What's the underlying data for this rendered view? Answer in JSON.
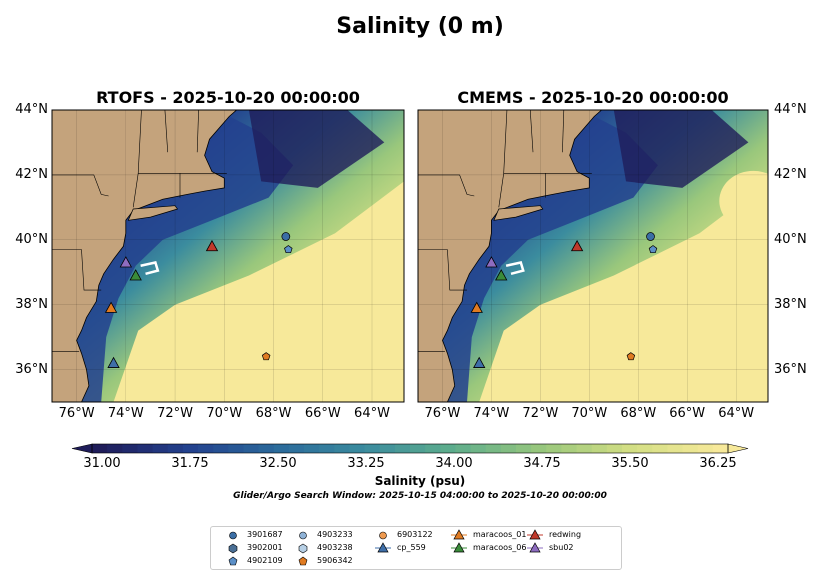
{
  "suptitle": "Salinity (0 m)",
  "panels": [
    {
      "title": "RTOFS - 2025-10-20 00:00:00"
    },
    {
      "title": "CMEMS - 2025-10-20 00:00:00"
    }
  ],
  "axes": {
    "lat_labels": [
      "44°N",
      "42°N",
      "40°N",
      "38°N",
      "36°N"
    ],
    "lon_labels": [
      "76°W",
      "74°W",
      "72°W",
      "70°W",
      "68°W",
      "66°W",
      "64°W"
    ]
  },
  "colorbar": {
    "label": "Salinity (psu)",
    "ticks": [
      "31.00",
      "31.75",
      "32.50",
      "33.25",
      "34.00",
      "34.75",
      "35.50",
      "36.25"
    ],
    "colors": [
      "#1f1d5a",
      "#23418e",
      "#2b6a9b",
      "#3b8c9e",
      "#5fae8c",
      "#99c77c",
      "#d3df84",
      "#f7e99a"
    ]
  },
  "search_window": "Glider/Argo Search Window: 2025-10-15 04:00:00 to 2025-10-20 00:00:00",
  "colors": {
    "land": "#c4a37c",
    "ocean_fresh": "#1f2a6e",
    "ocean_salty": "#f7e99a"
  },
  "chart_data": {
    "type": "heatmap",
    "variable": "Salinity",
    "units": "psu",
    "depth_m": 0,
    "time": "2025-10-20 00:00:00",
    "lat_range": [
      35,
      44
    ],
    "lon_range": [
      -77,
      -62.7
    ],
    "value_range": [
      31.0,
      36.25
    ],
    "models": [
      "RTOFS",
      "CMEMS"
    ],
    "platforms": [
      {
        "id": "3901687",
        "marker": "circle",
        "color": "#3b6ea5",
        "lon": -67.5,
        "lat": 40.1
      },
      {
        "id": "3902001",
        "marker": "hexagon",
        "color": "#4a6f95",
        "lon": null,
        "lat": null
      },
      {
        "id": "4902109",
        "marker": "pentagon",
        "color": "#5b8fc7",
        "lon": -67.4,
        "lat": 39.7
      },
      {
        "id": "4903233",
        "marker": "circle",
        "color": "#8fb2d6",
        "lon": null,
        "lat": null
      },
      {
        "id": "4903238",
        "marker": "hexagon",
        "color": "#b7d0e6",
        "lon": null,
        "lat": null
      },
      {
        "id": "5906342",
        "marker": "pentagon",
        "color": "#e07b22",
        "lon": -68.3,
        "lat": 36.4
      },
      {
        "id": "6903122",
        "marker": "circle",
        "color": "#ee9a50",
        "lon": null,
        "lat": null
      },
      {
        "id": "cp_559",
        "marker": "triangle",
        "color": "#3e6ea8",
        "lon": -74.5,
        "lat": 36.2
      },
      {
        "id": "maracoos_01",
        "marker": "triangle",
        "color": "#e07b22",
        "lon": -74.6,
        "lat": 37.9
      },
      {
        "id": "maracoos_06",
        "marker": "triangle",
        "color": "#3a8c3a",
        "lon": -73.6,
        "lat": 38.9
      },
      {
        "id": "redwing",
        "marker": "triangle",
        "color": "#c0392b",
        "lon": -70.5,
        "lat": 39.8
      },
      {
        "id": "sbu02",
        "marker": "triangle",
        "color": "#8e6cc0",
        "lon": -74.0,
        "lat": 39.3
      }
    ]
  }
}
